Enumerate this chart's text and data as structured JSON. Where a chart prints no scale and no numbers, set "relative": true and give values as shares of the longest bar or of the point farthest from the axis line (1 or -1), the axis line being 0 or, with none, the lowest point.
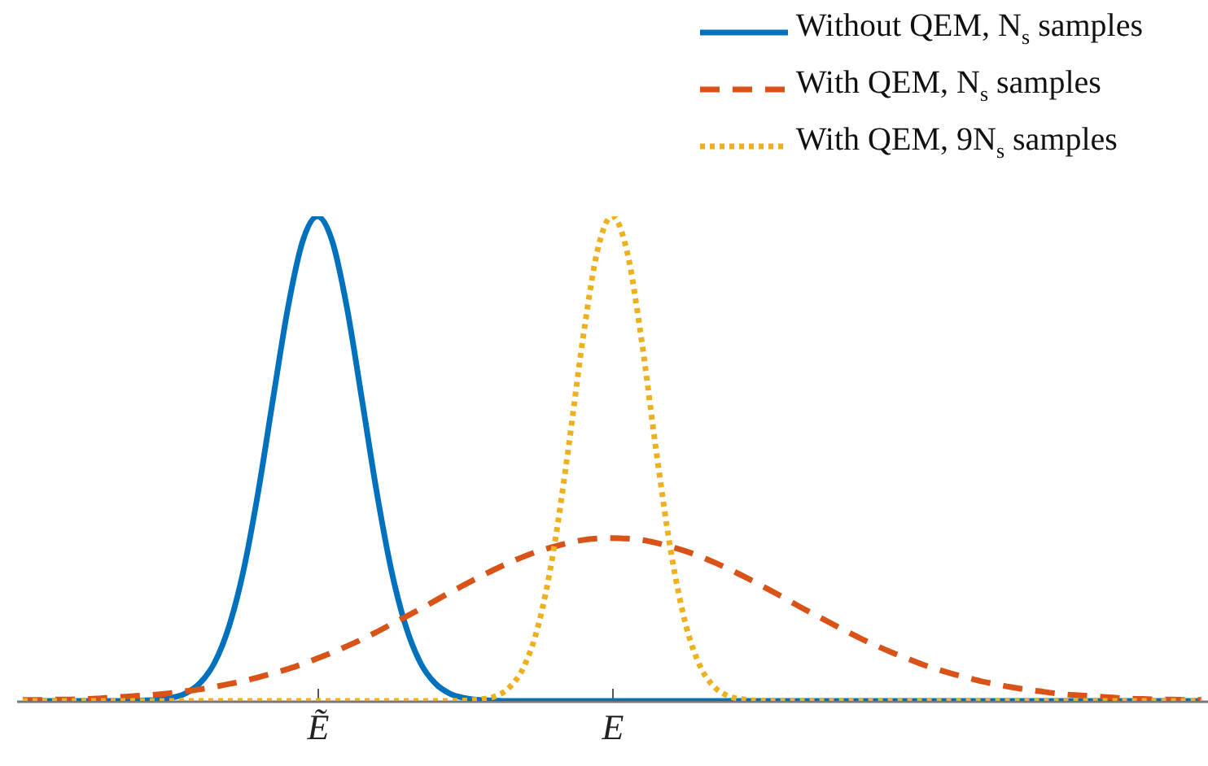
{
  "chart_data": {
    "type": "line",
    "relative": true,
    "legend": "top right",
    "tick_labels": "x",
    "categories": [
      null,
      null,
      null,
      null,
      null,
      null,
      null,
      null,
      null,
      null,
      null,
      null,
      null,
      null,
      null,
      null,
      null,
      null,
      null,
      null,
      "Ẽ",
      null,
      null,
      null,
      null,
      null,
      null,
      null,
      null,
      null,
      null,
      null,
      null,
      null,
      null,
      null,
      null,
      null,
      null,
      null,
      "E",
      null,
      null,
      null,
      null,
      null,
      null,
      null,
      null,
      null,
      null,
      null,
      null,
      null,
      null,
      null,
      null,
      null,
      null,
      null,
      null,
      null,
      null,
      null,
      null,
      null,
      null,
      null,
      null,
      null,
      null,
      null,
      null,
      null,
      null,
      null,
      null,
      null,
      null,
      null,
      null
    ],
    "series": [
      {
        "name": "Without QEM, N$_{s}$ samples",
        "color": "#0072bd",
        "line_style": "solid",
        "values": [
          0,
          0,
          0,
          0,
          0,
          0,
          0,
          0,
          0.001,
          0.002,
          0.006,
          0.015,
          0.036,
          0.078,
          0.154,
          0.272,
          0.435,
          0.626,
          0.812,
          0.949,
          1,
          0.949,
          0.812,
          0.626,
          0.435,
          0.272,
          0.154,
          0.078,
          0.036,
          0.015,
          0.006,
          0.002,
          0.001,
          0,
          0,
          0,
          0,
          0,
          0,
          0,
          0,
          0,
          0,
          0,
          0,
          0,
          0,
          0,
          0,
          0,
          0,
          0,
          0,
          0,
          0,
          0,
          0,
          0,
          0,
          0,
          0,
          0,
          0,
          0,
          0,
          0,
          0,
          0,
          0,
          0,
          0,
          0,
          0,
          0,
          0,
          0,
          0,
          0,
          0,
          0,
          0
        ]
      },
      {
        "name": "With QEM, N$_{s}$ samples",
        "color": "#d95319",
        "line_style": "dashed",
        "values": [
          0.002,
          0.002,
          0.003,
          0.003,
          0.004,
          0.005,
          0.007,
          0.009,
          0.011,
          0.013,
          0.016,
          0.02,
          0.024,
          0.029,
          0.035,
          0.041,
          0.049,
          0.057,
          0.066,
          0.076,
          0.088,
          0.1,
          0.113,
          0.127,
          0.142,
          0.158,
          0.174,
          0.19,
          0.207,
          0.224,
          0.24,
          0.256,
          0.271,
          0.285,
          0.298,
          0.309,
          0.318,
          0.326,
          0.332,
          0.335,
          0.336,
          0.335,
          0.332,
          0.326,
          0.318,
          0.309,
          0.298,
          0.285,
          0.271,
          0.256,
          0.24,
          0.224,
          0.207,
          0.19,
          0.174,
          0.158,
          0.142,
          0.127,
          0.113,
          0.1,
          0.088,
          0.076,
          0.066,
          0.057,
          0.049,
          0.041,
          0.035,
          0.029,
          0.024,
          0.02,
          0.016,
          0.013,
          0.011,
          0.009,
          0.007,
          0.005,
          0.004,
          0.003,
          0.003,
          0.002,
          0.002
        ]
      },
      {
        "name": "With QEM, 9N$_{s}$ samples",
        "color": "#edb120",
        "line_style": "dotted",
        "values": [
          0,
          0,
          0,
          0,
          0,
          0,
          0,
          0,
          0,
          0,
          0,
          0,
          0,
          0,
          0,
          0,
          0,
          0,
          0,
          0,
          0,
          0,
          0,
          0,
          0,
          0,
          0,
          0,
          0,
          0,
          0.001,
          0.003,
          0.009,
          0.027,
          0.07,
          0.157,
          0.306,
          0.514,
          0.744,
          0.929,
          1,
          0.929,
          0.744,
          0.514,
          0.306,
          0.157,
          0.07,
          0.027,
          0.009,
          0.003,
          0.001,
          0,
          0,
          0,
          0,
          0,
          0,
          0,
          0,
          0,
          0,
          0,
          0,
          0,
          0,
          0,
          0,
          0,
          0,
          0,
          0,
          0,
          0,
          0,
          0,
          0,
          0,
          0,
          0,
          0,
          0
        ]
      }
    ]
  }
}
